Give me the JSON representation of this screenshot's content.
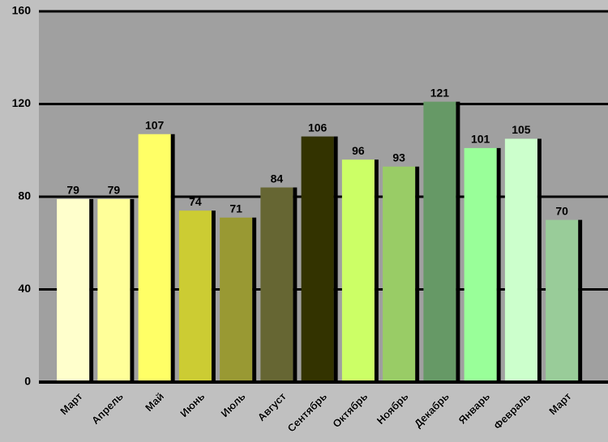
{
  "chart_data": {
    "type": "bar",
    "categories": [
      "Март",
      "Апрель",
      "Май",
      "Июнь",
      "Июль",
      "Август",
      "Сентябрь",
      "Октябрь",
      "Ноябрь",
      "Декабрь",
      "Январь",
      "Февраль",
      "Март"
    ],
    "values": [
      79,
      79,
      107,
      74,
      71,
      84,
      106,
      96,
      93,
      121,
      101,
      105,
      70
    ],
    "colors": [
      "#ffffcc",
      "#ffff99",
      "#ffff66",
      "#cccc33",
      "#999933",
      "#666633",
      "#333300",
      "#ccff66",
      "#99cc66",
      "#669966",
      "#99ff99",
      "#ccffcc",
      "#99cc99"
    ],
    "ylim": [
      0,
      160
    ],
    "yticks": [
      0,
      40,
      80,
      120,
      160
    ],
    "grid": true
  }
}
